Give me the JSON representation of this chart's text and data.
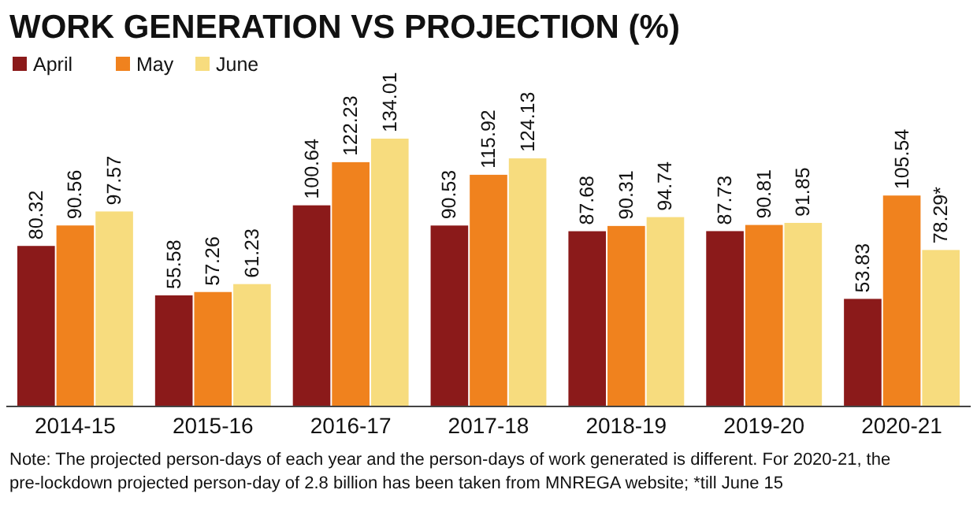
{
  "chart_data": {
    "type": "bar",
    "title": "WORK GENERATION VS PROJECTION (%)",
    "categories": [
      "2014-15",
      "2015-16",
      "2016-17",
      "2017-18",
      "2018-19",
      "2019-20",
      "2020-21"
    ],
    "series": [
      {
        "name": "April",
        "color": "#8b1a1a",
        "values": [
          80.32,
          55.58,
          100.64,
          90.53,
          87.68,
          87.73,
          53.83
        ],
        "value_labels": [
          "80.32",
          "55.58",
          "100.64",
          "90.53",
          "87.68",
          "87.73",
          "53.83"
        ]
      },
      {
        "name": "May",
        "color": "#f0821e",
        "values": [
          90.56,
          57.26,
          122.23,
          115.92,
          90.31,
          90.81,
          105.54
        ],
        "value_labels": [
          "90.56",
          "57.26",
          "122.23",
          "115.92",
          "90.31",
          "90.81",
          "105.54"
        ]
      },
      {
        "name": "June",
        "color": "#f7dc7e",
        "values": [
          97.57,
          61.23,
          134.01,
          124.13,
          94.74,
          91.85,
          78.29
        ],
        "value_labels": [
          "97.57",
          "61.23",
          "134.01",
          "124.13",
          "94.74",
          "91.85",
          "78.29*"
        ]
      }
    ],
    "legend": "top left",
    "annotations": [
      "Note: The projected person-days of each year and the person-days of work generated is different. For 2020-21, the",
      "pre-lockdown projected person-day of 2.8 billion has been taken from MNREGA website; *till June 15"
    ]
  }
}
